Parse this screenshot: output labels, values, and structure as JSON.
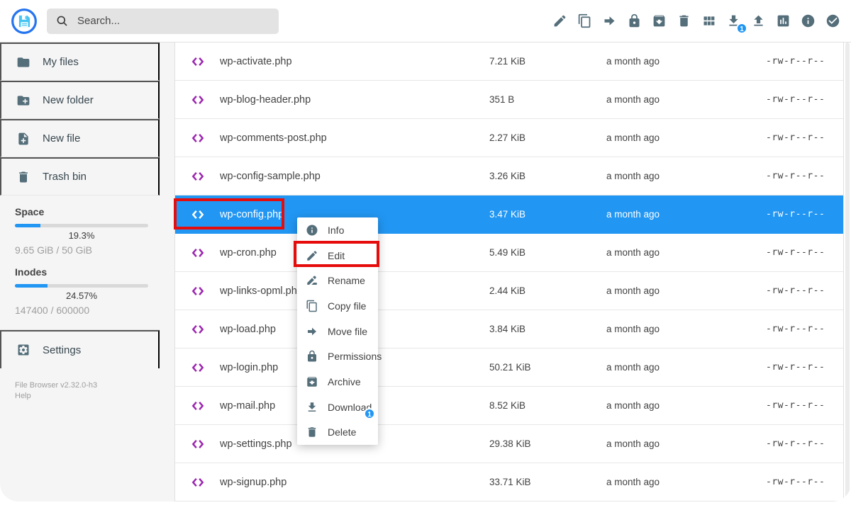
{
  "header": {
    "search": {
      "placeholder": "Search..."
    },
    "toolbar": [
      {
        "name": "edit",
        "icon": "pencil"
      },
      {
        "name": "copy",
        "icon": "copy"
      },
      {
        "name": "move",
        "icon": "arrow-right"
      },
      {
        "name": "permissions",
        "icon": "lock"
      },
      {
        "name": "archive",
        "icon": "archive"
      },
      {
        "name": "delete",
        "icon": "trash"
      },
      {
        "name": "view-mode",
        "icon": "grid"
      },
      {
        "name": "download",
        "icon": "download",
        "badge": "1"
      },
      {
        "name": "upload",
        "icon": "upload"
      },
      {
        "name": "stats",
        "icon": "bar-chart"
      },
      {
        "name": "info",
        "icon": "info"
      },
      {
        "name": "select-multiple",
        "icon": "check-circle"
      }
    ]
  },
  "sidebar": {
    "items": [
      {
        "name": "my-files",
        "label": "My files",
        "icon": "folder"
      },
      {
        "name": "new-folder",
        "label": "New folder",
        "icon": "folder-plus"
      },
      {
        "name": "new-file",
        "label": "New file",
        "icon": "file-plus"
      },
      {
        "name": "trash-bin",
        "label": "Trash bin",
        "icon": "trash"
      }
    ],
    "usage": [
      {
        "title": "Space",
        "percent": "19.3%",
        "fraction": 0.193,
        "detail": "9.65 GiB / 50 GiB"
      },
      {
        "title": "Inodes",
        "percent": "24.57%",
        "fraction": 0.2457,
        "detail": "147400 / 600000"
      }
    ],
    "settings_label": "Settings",
    "version": "File Browser v2.32.0-h3",
    "help_label": "Help"
  },
  "files": {
    "rows": [
      {
        "name": "wp-activate.php",
        "size": "7.21 KiB",
        "modified": "a month ago",
        "perm": "-rw-r--r--",
        "selected": false
      },
      {
        "name": "wp-blog-header.php",
        "size": "351 B",
        "modified": "a month ago",
        "perm": "-rw-r--r--",
        "selected": false
      },
      {
        "name": "wp-comments-post.php",
        "size": "2.27 KiB",
        "modified": "a month ago",
        "perm": "-rw-r--r--",
        "selected": false
      },
      {
        "name": "wp-config-sample.php",
        "size": "3.26 KiB",
        "modified": "a month ago",
        "perm": "-rw-r--r--",
        "selected": false
      },
      {
        "name": "wp-config.php",
        "size": "3.47 KiB",
        "modified": "a month ago",
        "perm": "-rw-r--r--",
        "selected": true
      },
      {
        "name": "wp-cron.php",
        "size": "5.49 KiB",
        "modified": "a month ago",
        "perm": "-rw-r--r--",
        "selected": false
      },
      {
        "name": "wp-links-opml.php",
        "size": "2.44 KiB",
        "modified": "a month ago",
        "perm": "-rw-r--r--",
        "selected": false
      },
      {
        "name": "wp-load.php",
        "size": "3.84 KiB",
        "modified": "a month ago",
        "perm": "-rw-r--r--",
        "selected": false
      },
      {
        "name": "wp-login.php",
        "size": "50.21 KiB",
        "modified": "a month ago",
        "perm": "-rw-r--r--",
        "selected": false
      },
      {
        "name": "wp-mail.php",
        "size": "8.52 KiB",
        "modified": "a month ago",
        "perm": "-rw-r--r--",
        "selected": false
      },
      {
        "name": "wp-settings.php",
        "size": "29.38 KiB",
        "modified": "a month ago",
        "perm": "-rw-r--r--",
        "selected": false
      },
      {
        "name": "wp-signup.php",
        "size": "33.71 KiB",
        "modified": "a month ago",
        "perm": "-rw-r--r--",
        "selected": false
      }
    ]
  },
  "context_menu": {
    "items": [
      {
        "name": "info",
        "label": "Info",
        "icon": "info"
      },
      {
        "name": "edit",
        "label": "Edit",
        "icon": "pencil",
        "annotated": true
      },
      {
        "name": "rename",
        "label": "Rename",
        "icon": "rename"
      },
      {
        "name": "copy-file",
        "label": "Copy file",
        "icon": "copy"
      },
      {
        "name": "move-file",
        "label": "Move file",
        "icon": "arrow-right"
      },
      {
        "name": "permissions",
        "label": "Permissions",
        "icon": "lock"
      },
      {
        "name": "archive",
        "label": "Archive",
        "icon": "archive"
      },
      {
        "name": "download",
        "label": "Download",
        "icon": "download",
        "badge": "1"
      },
      {
        "name": "delete",
        "label": "Delete",
        "icon": "trash"
      }
    ]
  },
  "colors": {
    "accent": "#2196f3",
    "selected_row": "#2196f3",
    "toolbar_icon": "#546e7a",
    "file_type_icon": "#9c27b0",
    "annotation": "#e60c0c",
    "usage_bar": "#2196f3"
  }
}
